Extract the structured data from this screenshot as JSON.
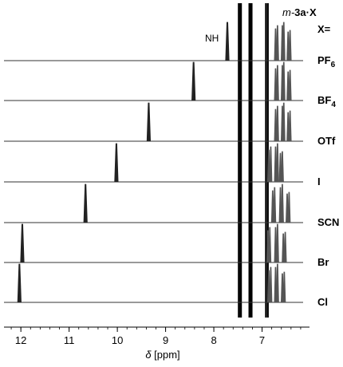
{
  "chart_data": {
    "type": "line",
    "title": "",
    "compound_prefix": "m-",
    "compound_bold": "3a·X",
    "x_header": "X=",
    "nh_label": "NH",
    "xlabel_symbol": "δ",
    "xlabel_unit": " [ppm]",
    "xlim": [
      12.35,
      6.05
    ],
    "x_ticks": [
      "12",
      "11",
      "10",
      "9",
      "8",
      "7"
    ],
    "x_tick_values": [
      12,
      11,
      10,
      9,
      8,
      7
    ],
    "reversed_x_axis": true,
    "common_peaks_ppm": [
      7.48,
      7.44,
      7.26,
      7.22,
      6.92,
      6.88
    ],
    "series": [
      {
        "name": "PF6",
        "label_main": "PF",
        "label_sub": "6",
        "nh_ppm": 7.72,
        "aryl_ppm": [
          6.72,
          6.68,
          6.58,
          6.55,
          6.46,
          6.42
        ]
      },
      {
        "name": "BF4",
        "label_main": "BF",
        "label_sub": "4",
        "nh_ppm": 8.42,
        "aryl_ppm": [
          6.72,
          6.68,
          6.58,
          6.55,
          6.46,
          6.42
        ]
      },
      {
        "name": "OTf",
        "label_main": "OTf",
        "label_sub": "",
        "nh_ppm": 9.35,
        "aryl_ppm": [
          6.72,
          6.68,
          6.58,
          6.55,
          6.46,
          6.42
        ]
      },
      {
        "name": "I",
        "label_main": "I",
        "label_sub": "",
        "nh_ppm": 10.02,
        "aryl_ppm": [
          6.86,
          6.82,
          6.72,
          6.68,
          6.62,
          6.58
        ]
      },
      {
        "name": "SCN",
        "label_main": "SCN",
        "label_sub": "",
        "nh_ppm": 10.66,
        "aryl_ppm": [
          6.78,
          6.74,
          6.62,
          6.58,
          6.48,
          6.44
        ]
      },
      {
        "name": "Br",
        "label_main": "Br",
        "label_sub": "",
        "nh_ppm": 11.97,
        "aryl_ppm": [
          6.88,
          6.84,
          6.72,
          6.68,
          6.56,
          6.52
        ]
      },
      {
        "name": "Cl",
        "label_main": "Cl",
        "label_sub": "",
        "nh_ppm": 12.03,
        "aryl_ppm": [
          6.86,
          6.82,
          6.72,
          6.68,
          6.58,
          6.54
        ]
      }
    ]
  }
}
